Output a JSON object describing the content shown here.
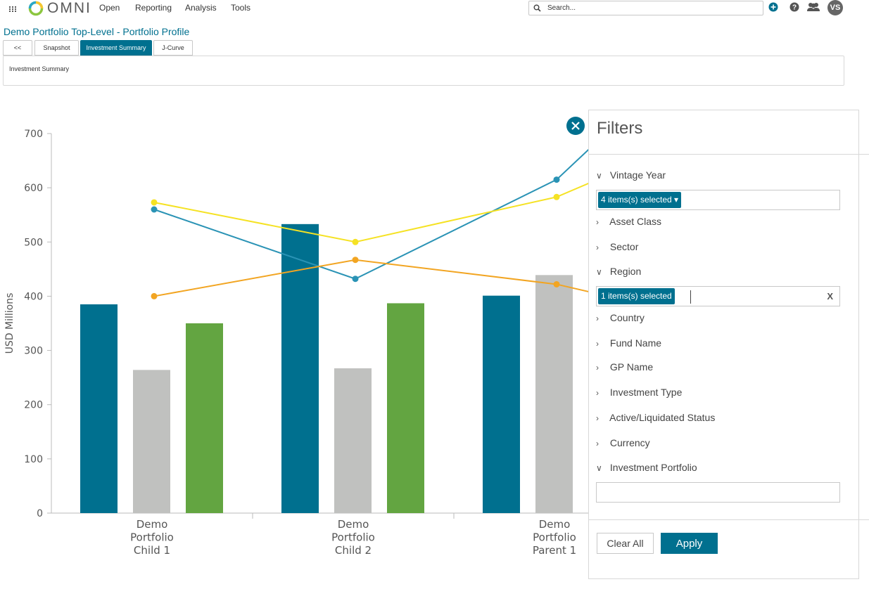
{
  "app": {
    "logo_text": "OMNI",
    "nav": [
      "Open",
      "Reporting",
      "Analysis",
      "Tools"
    ],
    "search_placeholder": "Search...",
    "user_initials": "VS"
  },
  "page": {
    "title": "Demo Portfolio Top-Level - Portfolio Profile",
    "tabs": [
      "<<",
      "Snapshot",
      "Investment Summary",
      "J-Curve"
    ],
    "active_tab": "Investment Summary",
    "summary_label": "Investment Summary"
  },
  "chart_data": {
    "type": "bar",
    "ylabel": "USD Millions",
    "ylim": [
      0,
      700
    ],
    "yticks": [
      0,
      100,
      200,
      300,
      400,
      500,
      600,
      700
    ],
    "categories": [
      "Demo Portfolio Child 1",
      "Demo Portfolio Child 2",
      "Demo Portfolio Parent 1"
    ],
    "category_lines": [
      [
        "Demo",
        "Portfolio",
        "Child 1"
      ],
      [
        "Demo",
        "Portfolio",
        "Child 2"
      ],
      [
        "Demo",
        "Portfolio",
        "Parent 1"
      ]
    ],
    "bar_series": [
      {
        "color": "#00708f",
        "values": [
          385,
          533,
          401
        ]
      },
      {
        "color": "#c0c1bf",
        "values": [
          264,
          267,
          439
        ]
      },
      {
        "color": "#63a541",
        "values": [
          350,
          387,
          null
        ]
      }
    ],
    "line_series": [
      {
        "color": "#2a93b5",
        "values": [
          560,
          432,
          615
        ]
      },
      {
        "color": "#f5e224",
        "values": [
          573,
          500,
          583
        ]
      },
      {
        "color": "#f2a522",
        "values": [
          400,
          467,
          422
        ]
      }
    ],
    "grid": false,
    "legend": "none"
  },
  "filters": {
    "title": "Filters",
    "items": [
      {
        "label": "Vintage Year",
        "expanded": true,
        "selection": "4 items(s) selected ▾"
      },
      {
        "label": "Asset Class",
        "expanded": false
      },
      {
        "label": "Sector",
        "expanded": false
      },
      {
        "label": "Region",
        "expanded": true,
        "selection": "1 items(s) selected",
        "clear": "X"
      },
      {
        "label": "Country",
        "expanded": false
      },
      {
        "label": "Fund Name",
        "expanded": false
      },
      {
        "label": "GP Name",
        "expanded": false
      },
      {
        "label": "Investment Type",
        "expanded": false
      },
      {
        "label": "Active/Liquidated Status",
        "expanded": false
      },
      {
        "label": "Currency",
        "expanded": false
      },
      {
        "label": "Investment Portfolio",
        "expanded": true,
        "selection": ""
      }
    ],
    "clear_label": "Clear All",
    "apply_label": "Apply"
  }
}
